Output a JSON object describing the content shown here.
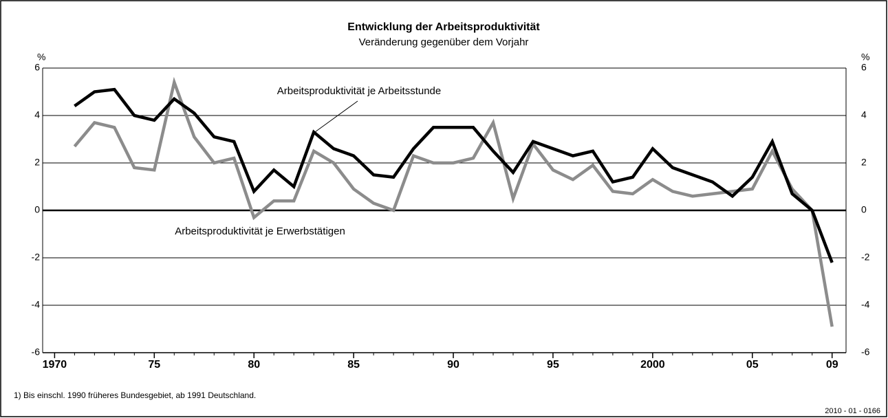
{
  "chart_data": {
    "type": "line",
    "title": "Entwicklung der Arbeitsproduktivität",
    "subtitle": "Veränderung gegenüber dem Vorjahr",
    "y_label": "%",
    "footnote": "1) Bis einschl. 1990 früheres Bundesgebiet, ab 1991 Deutschland.",
    "source_code": "2010 - 01 - 0166",
    "x": [
      1971,
      1972,
      1973,
      1974,
      1975,
      1976,
      1977,
      1978,
      1979,
      1980,
      1981,
      1982,
      1983,
      1984,
      1985,
      1986,
      1987,
      1988,
      1989,
      1990,
      1991,
      1992,
      1993,
      1994,
      1995,
      1996,
      1997,
      1998,
      1999,
      2000,
      2001,
      2002,
      2003,
      2004,
      2005,
      2006,
      2007,
      2008,
      2009
    ],
    "series": [
      {
        "name": "Arbeitsproduktivität je Arbeitsstunde",
        "color": "#000000",
        "values": [
          4.4,
          5.0,
          5.1,
          4.0,
          3.8,
          4.7,
          4.1,
          3.1,
          2.9,
          0.8,
          1.7,
          1.0,
          3.3,
          2.6,
          2.3,
          1.5,
          1.4,
          2.6,
          3.5,
          3.5,
          3.5,
          2.5,
          1.6,
          2.9,
          2.6,
          2.3,
          2.5,
          1.2,
          1.4,
          2.6,
          1.8,
          1.5,
          1.2,
          0.6,
          1.4,
          2.9,
          0.7,
          0.0,
          -2.2
        ]
      },
      {
        "name": "Arbeitsproduktivität je Erwerbstätigen",
        "color": "#8c8c8c",
        "values": [
          2.7,
          3.7,
          3.5,
          1.8,
          1.7,
          5.4,
          3.1,
          2.0,
          2.2,
          -0.3,
          0.4,
          0.4,
          2.5,
          2.0,
          0.9,
          0.3,
          0.0,
          2.3,
          2.0,
          2.0,
          2.2,
          3.7,
          0.5,
          2.8,
          1.7,
          1.3,
          1.9,
          0.8,
          0.7,
          1.3,
          0.8,
          0.6,
          0.7,
          0.8,
          0.9,
          2.5,
          0.9,
          0.0,
          -4.9
        ]
      }
    ],
    "xlim": [
      1969.4,
      2009.7
    ],
    "xticks": [
      1970,
      {
        "value": 1975,
        "label": "75"
      },
      {
        "value": 1980,
        "label": "80"
      },
      {
        "value": 1985,
        "label": "85"
      },
      {
        "value": 1990,
        "label": "90"
      },
      {
        "value": 1995,
        "label": "95"
      },
      2000,
      {
        "value": 2005,
        "label": "05"
      },
      {
        "value": 2009,
        "label": "09"
      }
    ],
    "ylim": [
      -6,
      6
    ],
    "yticks": [
      -6,
      -4,
      -2,
      0,
      2,
      4,
      6
    ],
    "grid": true
  }
}
